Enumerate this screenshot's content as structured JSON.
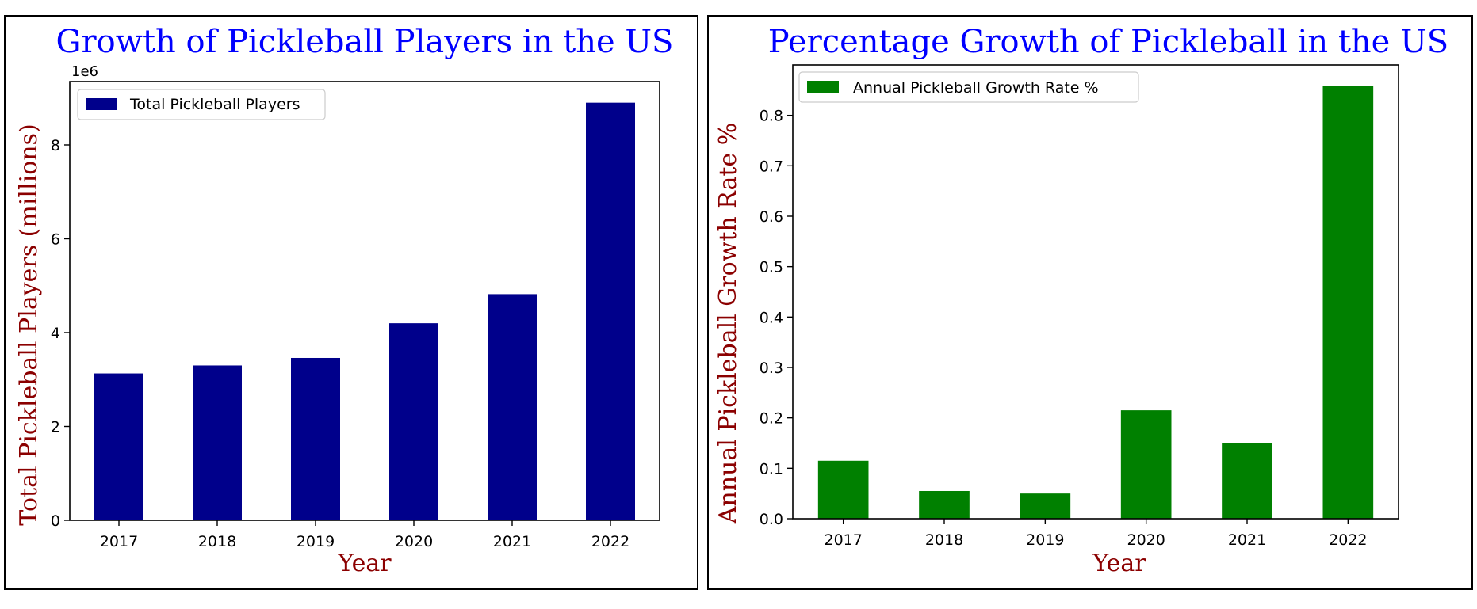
{
  "chart_data": [
    {
      "type": "bar",
      "title": "Growth of Pickleball Players in the US",
      "xlabel": "Year",
      "ylabel": "Total Pickleball Players (millions)",
      "offset_label": "1e6",
      "categories": [
        "2017",
        "2018",
        "2019",
        "2020",
        "2021",
        "2022"
      ],
      "series": [
        {
          "name": "Total Pickleball Players",
          "values": [
            3.13,
            3.3,
            3.46,
            4.2,
            4.82,
            8.9
          ],
          "color": "#00008b"
        }
      ],
      "ylim": [
        0,
        9.35
      ],
      "yticks": [
        0,
        2,
        4,
        6,
        8
      ],
      "legend": "top-left",
      "grid": false,
      "title_color": "#0000ff",
      "label_color": "#8b0000"
    },
    {
      "type": "bar",
      "title": "Percentage Growth of Pickleball in the US",
      "xlabel": "Year",
      "ylabel": "Annual Pickleball Growth Rate %",
      "categories": [
        "2017",
        "2018",
        "2019",
        "2020",
        "2021",
        "2022"
      ],
      "series": [
        {
          "name": "Annual Pickleball Growth Rate %",
          "values": [
            0.115,
            0.055,
            0.05,
            0.215,
            0.15,
            0.858
          ],
          "color": "#008000"
        }
      ],
      "ylim": [
        0,
        0.9
      ],
      "yticks": [
        0.0,
        0.1,
        0.2,
        0.3,
        0.4,
        0.5,
        0.6,
        0.7,
        0.8
      ],
      "legend": "top-left",
      "grid": false,
      "title_color": "#0000ff",
      "label_color": "#8b0000"
    }
  ]
}
